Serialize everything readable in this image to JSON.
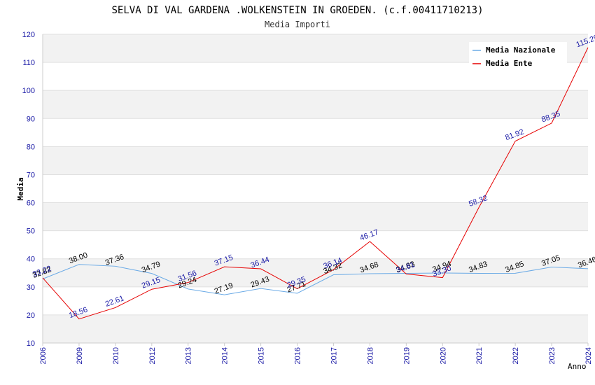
{
  "chart_data": {
    "type": "line",
    "title": "SELVA DI VAL GARDENA .WOLKENSTEIN IN GROEDEN. (c.f.00411710213)",
    "subtitle": "Media Importi",
    "xlabel": "Anno",
    "ylabel": "Media",
    "ylim": [
      10,
      120
    ],
    "yticks": [
      10,
      20,
      30,
      40,
      50,
      60,
      70,
      80,
      90,
      100,
      110,
      120
    ],
    "categories": [
      "2006",
      "2009",
      "2010",
      "2012",
      "2013",
      "2014",
      "2015",
      "2016",
      "2017",
      "2018",
      "2019",
      "2020",
      "2021",
      "2022",
      "2023",
      "2024"
    ],
    "series": [
      {
        "name": "Media Nazionale",
        "color": "#6aaae6",
        "label_color": "#000000",
        "values": [
          32.82,
          38.0,
          37.36,
          34.79,
          29.24,
          27.19,
          29.43,
          27.71,
          34.32,
          34.68,
          34.83,
          34.94,
          34.83,
          34.85,
          37.05,
          36.46
        ],
        "labels": [
          "32.82",
          "38.00",
          "37.36",
          "34.79",
          "29.24",
          "27.19",
          "29.43",
          "27.71",
          "34.32",
          "34.68",
          "34.83",
          "34.94",
          "34.83",
          "34.85",
          "37.05",
          "36.46"
        ]
      },
      {
        "name": "Media Ente",
        "color": "#e60000",
        "label_color": "#1a1aa6",
        "values": [
          33.22,
          18.56,
          22.61,
          29.15,
          31.56,
          37.15,
          36.44,
          29.35,
          36.14,
          46.17,
          34.61,
          33.3,
          58.32,
          81.92,
          88.35,
          115.29
        ],
        "labels": [
          "33.22",
          "18.56",
          "22.61",
          "29.15",
          "31.56",
          "37.15",
          "36.44",
          "29.35",
          "36.14",
          "46.17",
          "34.61",
          "33.30",
          "58.32",
          "81.92",
          "88.35",
          "115.29"
        ]
      }
    ],
    "legend": "top-right",
    "grid": true
  }
}
